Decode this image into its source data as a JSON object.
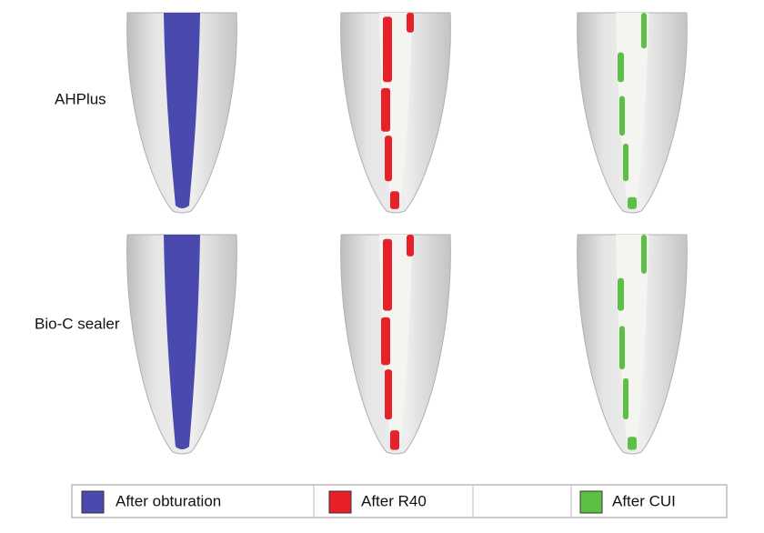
{
  "rows": [
    {
      "label": "AHPlus"
    },
    {
      "label": "Bio-C sealer"
    }
  ],
  "legend": [
    {
      "label": "After obturation",
      "color": "#4a4aae"
    },
    {
      "label": "After R40",
      "color": "#e8202a"
    },
    {
      "label": "After CUI",
      "color": "#5cc046"
    }
  ]
}
